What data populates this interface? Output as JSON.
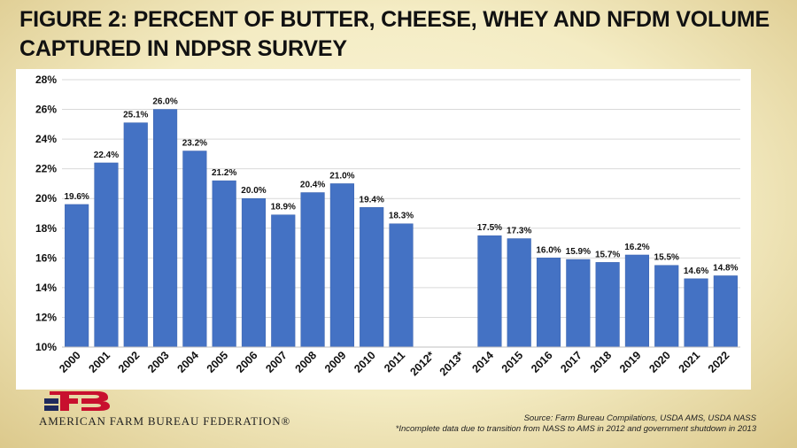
{
  "title": "FIGURE 2: PERCENT OF BUTTER, CHEESE, WHEY AND NFDM VOLUME CAPTURED IN NDPSR SURVEY",
  "organization": "AMERICAN FARM BUREAU FEDERATION®",
  "source": "Source: Farm Bureau Compilations, USDA AMS, USDA NASS",
  "footnote": "*Incomplete data due to transition from NASS to AMS in 2012 and government shutdown in 2013",
  "colors": {
    "bar": "#4472c4",
    "bar_edge": "#3a62ad",
    "grid": "#d9d9d9"
  },
  "chart_data": {
    "type": "bar",
    "categories": [
      "2000",
      "2001",
      "2002",
      "2003",
      "2004",
      "2005",
      "2006",
      "2007",
      "2008",
      "2009",
      "2010",
      "2011",
      "2012*",
      "2013*",
      "2014",
      "2015",
      "2016",
      "2017",
      "2018",
      "2019",
      "2020",
      "2021",
      "2022"
    ],
    "values": [
      19.6,
      22.4,
      25.1,
      26.0,
      23.2,
      21.2,
      20.0,
      18.9,
      20.4,
      21.0,
      19.4,
      18.3,
      null,
      null,
      17.5,
      17.3,
      16.0,
      15.9,
      15.7,
      16.2,
      15.5,
      14.6,
      14.8
    ],
    "data_labels": [
      "19.6%",
      "22.4%",
      "25.1%",
      "26.0%",
      "23.2%",
      "21.2%",
      "20.0%",
      "18.9%",
      "20.4%",
      "21.0%",
      "19.4%",
      "18.3%",
      "",
      "",
      "17.5%",
      "17.3%",
      "16.0%",
      "15.9%",
      "15.7%",
      "16.2%",
      "15.5%",
      "14.6%",
      "14.8%"
    ],
    "y_ticks": [
      10,
      12,
      14,
      16,
      18,
      20,
      22,
      24,
      26,
      28
    ],
    "y_tick_labels": [
      "10%",
      "12%",
      "14%",
      "16%",
      "18%",
      "20%",
      "22%",
      "24%",
      "26%",
      "28%"
    ],
    "ylim": [
      10,
      28
    ],
    "grid": true,
    "xlabel": "",
    "ylabel": ""
  }
}
